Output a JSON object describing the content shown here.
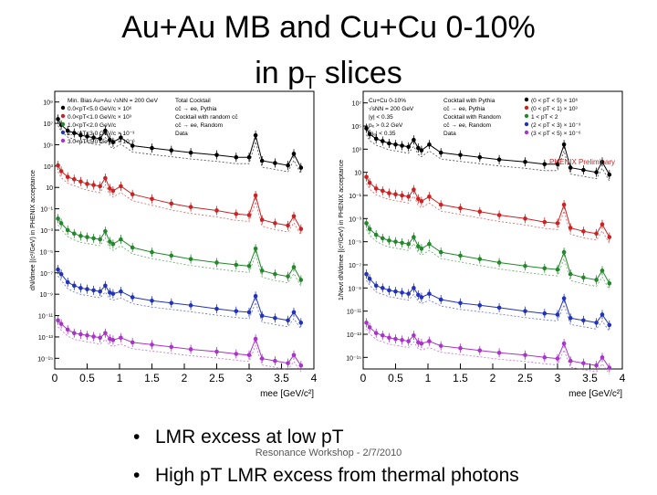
{
  "slide": {
    "title_line1": "Au+Au MB and Cu+Cu 0-10%",
    "title_line2_main": "in p",
    "title_line2_sub": "T",
    "title_line2_end": " slices",
    "bullets": [
      "LMR excess at low pT",
      "High pT LMR excess from thermal photons"
    ],
    "footer": "Resonance Workshop - 2/7/2010"
  },
  "chart_data": [
    {
      "type": "line",
      "title": "Au+Au Min. Bias",
      "xlabel": "mee [GeV/c²]",
      "ylabel": "dN/dmee [(c²/GeV) in PHENIX acceptance",
      "xlim": [
        0,
        4
      ],
      "xticks": [
        0,
        0.5,
        1,
        1.5,
        2,
        2.5,
        3,
        3.5,
        4
      ],
      "yticks": [
        "10⁹",
        "10⁷",
        "10⁵",
        "10³",
        "10",
        "10⁻¹",
        "10⁻³",
        "10⁻⁵",
        "10⁻⁷",
        "10⁻⁹",
        "10⁻¹¹",
        "10⁻¹³",
        "10⁻¹⁵"
      ],
      "ylog_range": [
        -15,
        9
      ],
      "legend": [
        "Min. Bias Au+Au √sNN = 200 GeV",
        "0.0<pT<5.0 GeV/c × 10⁶",
        "0.0<pT<1.0 GeV/c × 10³",
        "1.0<pT<2.0 GeV/c",
        "2.0<pT<3.0 GeV/c × 10⁻³",
        "3.0<pT<5.0 GeV/c × 10⁻⁶",
        "Total Cocktail",
        "cc̄ → ee, Pythia",
        "Cocktail with random cc̄",
        "cc̄ → ee, Random",
        "Data"
      ],
      "series": [
        {
          "name": "0.0<pT<5.0",
          "color": "#000000",
          "x": [
            0.05,
            0.1,
            0.2,
            0.3,
            0.4,
            0.5,
            0.6,
            0.7,
            0.78,
            0.85,
            0.9,
            1.02,
            1.2,
            1.5,
            1.8,
            2.1,
            2.5,
            2.8,
            3.0,
            3.1,
            3.2,
            3.4,
            3.6,
            3.69,
            3.8
          ],
          "y": [
            6.6,
            6.1,
            5.6,
            5.4,
            5.2,
            5.1,
            5.0,
            4.9,
            5.6,
            4.8,
            4.6,
            5.0,
            4.3,
            4.1,
            3.9,
            3.7,
            3.5,
            3.3,
            3.3,
            5.2,
            3.0,
            2.8,
            2.6,
            3.6,
            2.4
          ]
        },
        {
          "name": "0.0<pT<1.0",
          "color": "#cc2222",
          "x": [
            0.05,
            0.1,
            0.2,
            0.3,
            0.4,
            0.5,
            0.6,
            0.7,
            0.78,
            0.85,
            0.9,
            1.02,
            1.2,
            1.5,
            1.8,
            2.1,
            2.5,
            2.8,
            3.0,
            3.1,
            3.2,
            3.4,
            3.6,
            3.69,
            3.8
          ],
          "y": [
            2.6,
            2.1,
            1.6,
            1.4,
            1.2,
            1.0,
            0.9,
            0.8,
            1.5,
            0.6,
            0.4,
            0.8,
            0.1,
            -0.3,
            -0.7,
            -1.0,
            -1.3,
            -1.6,
            -1.7,
            0.0,
            -2.1,
            -2.4,
            -2.6,
            -1.8,
            -2.9
          ]
        },
        {
          "name": "1.0<pT<2.0",
          "color": "#22882a",
          "x": [
            0.05,
            0.1,
            0.2,
            0.3,
            0.4,
            0.5,
            0.6,
            0.7,
            0.78,
            0.85,
            0.9,
            1.02,
            1.2,
            1.5,
            1.8,
            2.1,
            2.5,
            2.8,
            3.0,
            3.1,
            3.2,
            3.4,
            3.6,
            3.69,
            3.8
          ],
          "y": [
            -2.0,
            -2.4,
            -3.0,
            -3.3,
            -3.5,
            -3.6,
            -3.7,
            -3.8,
            -3.1,
            -4.0,
            -4.2,
            -3.8,
            -4.5,
            -4.9,
            -5.2,
            -5.5,
            -5.8,
            -6.0,
            -6.1,
            -4.6,
            -6.5,
            -6.8,
            -7.0,
            -6.2,
            -7.3
          ]
        },
        {
          "name": "2.0<pT<3.0",
          "color": "#2233bb",
          "x": [
            0.05,
            0.1,
            0.2,
            0.3,
            0.4,
            0.5,
            0.6,
            0.7,
            0.78,
            0.85,
            0.9,
            1.02,
            1.2,
            1.5,
            1.8,
            2.1,
            2.5,
            2.8,
            3.0,
            3.1,
            3.2,
            3.4,
            3.6,
            3.69,
            3.8
          ],
          "y": [
            -6.4,
            -6.8,
            -7.5,
            -7.8,
            -8.0,
            -8.1,
            -8.2,
            -8.3,
            -7.8,
            -8.4,
            -8.5,
            -8.3,
            -8.8,
            -9.1,
            -9.3,
            -9.5,
            -9.8,
            -10.0,
            -10.1,
            -8.7,
            -10.4,
            -10.6,
            -10.8,
            -10.1,
            -11.0
          ]
        },
        {
          "name": "3.0<pT<5.0",
          "color": "#aa33cc",
          "x": [
            0.05,
            0.1,
            0.2,
            0.3,
            0.4,
            0.5,
            0.6,
            0.7,
            0.78,
            0.85,
            0.9,
            1.02,
            1.2,
            1.5,
            1.8,
            2.1,
            2.5,
            2.8,
            3.0,
            3.1,
            3.2,
            3.4,
            3.6,
            3.69,
            3.8
          ],
          "y": [
            -10.8,
            -11.1,
            -11.6,
            -11.9,
            -12.0,
            -12.1,
            -12.2,
            -12.3,
            -11.9,
            -12.4,
            -12.5,
            -12.3,
            -12.7,
            -12.9,
            -13.1,
            -13.3,
            -13.5,
            -13.7,
            -13.8,
            -12.4,
            -14.1,
            -14.3,
            -14.5,
            -13.8,
            -14.7
          ]
        }
      ]
    },
    {
      "type": "line",
      "title": "Cu+Cu 0-10%",
      "annotation": "PHENIX Preliminary",
      "xlabel": "mee [GeV/c²]",
      "ylabel": "1/Nevt dN/dmee [(c²/GeV) in PHENIX acceptance",
      "xlim": [
        0,
        4
      ],
      "xticks": [
        0,
        0.5,
        1,
        1.5,
        2,
        2.5,
        3,
        3.5,
        4
      ],
      "yticks": [
        "10⁷",
        "10⁵",
        "10³",
        "10",
        "10⁻¹",
        "10⁻³",
        "10⁻⁵",
        "10⁻⁷",
        "10⁻⁹",
        "10⁻¹¹",
        "10⁻¹³",
        "10⁻¹⁵"
      ],
      "ylog_range": [
        -16,
        8
      ],
      "legend": [
        "Cu+Cu 0-10%",
        "√sNN = 200 GeV",
        "|y| < 0.35",
        "pₑ > 0.2 GeV",
        "|ηₑ| < 0.35",
        "Cocktail with Pythia",
        "cc̄ → ee, Pythia",
        "Cocktail with Random",
        "cc̄ → ee, Random",
        "Data",
        "(0 < pT < 5) × 10⁶",
        "(0 < pT < 1) × 10³",
        "1 < pT < 2",
        "(2 < pT < 3) × 10⁻³",
        "(3 < pT < 5) × 10⁻⁶"
      ],
      "series": [
        {
          "name": "0 < pT < 5",
          "color": "#000000",
          "x": [
            0.05,
            0.1,
            0.2,
            0.3,
            0.4,
            0.5,
            0.6,
            0.7,
            0.78,
            0.85,
            0.9,
            1.02,
            1.2,
            1.5,
            1.8,
            2.1,
            2.5,
            2.8,
            3.0,
            3.1,
            3.2,
            3.4,
            3.6,
            3.69,
            3.8
          ],
          "y": [
            4.8,
            4.3,
            3.9,
            3.7,
            3.5,
            3.4,
            3.3,
            3.2,
            3.8,
            3.1,
            2.9,
            3.4,
            2.7,
            2.5,
            2.3,
            2.1,
            1.9,
            1.7,
            1.7,
            3.4,
            1.4,
            1.2,
            1.0,
            1.9,
            0.8
          ]
        },
        {
          "name": "0 < pT < 1",
          "color": "#cc2222",
          "x": [
            0.05,
            0.1,
            0.2,
            0.3,
            0.4,
            0.5,
            0.6,
            0.7,
            0.78,
            0.85,
            0.9,
            1.02,
            1.2,
            1.5,
            1.8,
            2.1,
            2.5,
            2.8,
            3.0,
            3.1,
            3.2,
            3.4,
            3.6,
            3.69,
            3.8
          ],
          "y": [
            0.6,
            0.1,
            -0.4,
            -0.6,
            -0.8,
            -0.9,
            -1.0,
            -1.1,
            -0.5,
            -1.3,
            -1.5,
            -1.1,
            -1.8,
            -2.1,
            -2.4,
            -2.7,
            -3.0,
            -3.3,
            -3.4,
            -1.8,
            -3.8,
            -4.1,
            -4.3,
            -3.5,
            -4.6
          ]
        },
        {
          "name": "1 < pT < 2",
          "color": "#22882a",
          "x": [
            0.05,
            0.1,
            0.2,
            0.3,
            0.4,
            0.5,
            0.6,
            0.7,
            0.78,
            0.85,
            0.9,
            1.02,
            1.2,
            1.5,
            1.8,
            2.1,
            2.5,
            2.8,
            3.0,
            3.1,
            3.2,
            3.4,
            3.6,
            3.69,
            3.8
          ],
          "y": [
            -3.4,
            -3.9,
            -4.4,
            -4.7,
            -4.9,
            -5.0,
            -5.1,
            -5.2,
            -4.6,
            -5.4,
            -5.6,
            -5.2,
            -5.9,
            -6.2,
            -6.5,
            -6.8,
            -7.1,
            -7.3,
            -7.4,
            -5.9,
            -7.8,
            -8.1,
            -8.3,
            -7.5,
            -8.6
          ]
        },
        {
          "name": "2 < pT < 3",
          "color": "#2233bb",
          "x": [
            0.05,
            0.1,
            0.2,
            0.3,
            0.4,
            0.5,
            0.6,
            0.7,
            0.78,
            0.85,
            0.9,
            1.02,
            1.2,
            1.5,
            1.8,
            2.1,
            2.5,
            2.8,
            3.0,
            3.1,
            3.2,
            3.4,
            3.6,
            3.69,
            3.8
          ],
          "y": [
            -7.8,
            -8.2,
            -8.8,
            -9.0,
            -9.2,
            -9.3,
            -9.4,
            -9.5,
            -9.0,
            -9.6,
            -9.8,
            -9.5,
            -10.0,
            -10.3,
            -10.5,
            -10.7,
            -11.0,
            -11.2,
            -11.3,
            -9.9,
            -11.6,
            -11.8,
            -12.0,
            -11.3,
            -12.2
          ]
        },
        {
          "name": "3 < pT < 5",
          "color": "#aa33cc",
          "x": [
            0.05,
            0.1,
            0.2,
            0.3,
            0.4,
            0.5,
            0.6,
            0.7,
            0.78,
            0.85,
            0.9,
            1.02,
            1.2,
            1.5,
            1.8,
            2.1,
            2.5,
            2.8,
            3.0,
            3.1,
            3.2,
            3.4,
            3.6,
            3.69,
            3.8
          ],
          "y": [
            -12.0,
            -12.4,
            -12.9,
            -13.1,
            -13.3,
            -13.4,
            -13.5,
            -13.6,
            -13.1,
            -13.7,
            -13.8,
            -13.6,
            -14.0,
            -14.2,
            -14.4,
            -14.6,
            -14.8,
            -15.0,
            -15.1,
            -13.8,
            -15.3,
            -15.5,
            -15.7,
            -15.0,
            -15.9
          ]
        }
      ]
    }
  ]
}
